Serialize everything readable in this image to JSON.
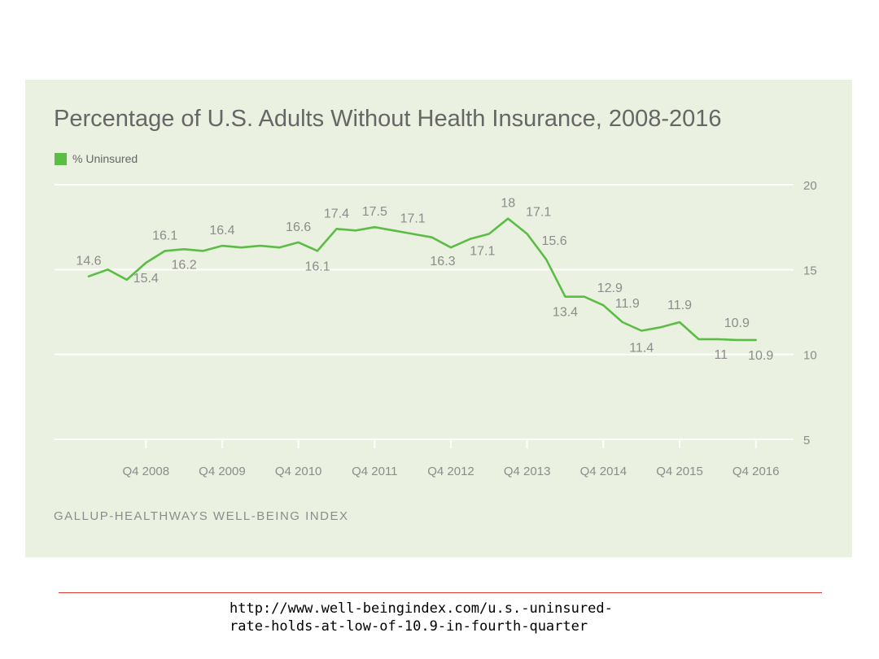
{
  "chart_data": {
    "type": "line",
    "title": "Percentage of U.S. Adults Without Health Insurance, 2008-2016",
    "legend": [
      "% Uninsured"
    ],
    "ylim": [
      5,
      20
    ],
    "yticks": [
      "20",
      "15",
      "10",
      "5"
    ],
    "xtick_labels": [
      "Q4 2008",
      "Q4 2009",
      "Q4 2010",
      "Q4 2011",
      "Q4 2012",
      "Q4 2013",
      "Q4 2014",
      "Q4 2015",
      "Q4 2016"
    ],
    "grid": true,
    "series": [
      {
        "name": "% Uninsured",
        "color": "#5cbd46",
        "values": [
          14.6,
          15.0,
          14.4,
          15.4,
          16.1,
          16.2,
          16.1,
          16.4,
          16.3,
          16.4,
          16.3,
          16.6,
          16.1,
          17.4,
          17.3,
          17.5,
          17.3,
          17.1,
          16.9,
          16.3,
          16.8,
          17.1,
          18.0,
          17.1,
          15.6,
          13.4,
          13.4,
          12.9,
          11.9,
          11.4,
          11.6,
          11.9,
          10.9,
          10.9,
          10.85,
          10.85
        ],
        "point_labels": [
          {
            "index": 0,
            "text": "14.6"
          },
          {
            "index": 3,
            "text": "15.4"
          },
          {
            "index": 4,
            "text": "16.1"
          },
          {
            "index": 5,
            "text": "16.2"
          },
          {
            "index": 7,
            "text": "16.4"
          },
          {
            "index": 11,
            "text": "16.6"
          },
          {
            "index": 12,
            "text": "16.1"
          },
          {
            "index": 13,
            "text": "17.4"
          },
          {
            "index": 15,
            "text": "17.5"
          },
          {
            "index": 17,
            "text": "17.1"
          },
          {
            "index": 19,
            "text": "16.3"
          },
          {
            "index": 21,
            "text": "17.1"
          },
          {
            "index": 22,
            "text": "18"
          },
          {
            "index": 23,
            "text": "17.1"
          },
          {
            "index": 24,
            "text": "15.6"
          },
          {
            "index": 25,
            "text": "13.4"
          },
          {
            "index": 27,
            "text": "12.9"
          },
          {
            "index": 28,
            "text": "11.9"
          },
          {
            "index": 29,
            "text": "11.4"
          },
          {
            "index": 31,
            "text": "11.9"
          },
          {
            "index": 33,
            "text": "11"
          },
          {
            "index": 34,
            "text": "10.9"
          },
          {
            "index": 35,
            "text": "10.9"
          }
        ]
      }
    ]
  },
  "source": "GALLUP-HEALTHWAYS WELL-BEING INDEX",
  "url": "http://www.well-beingindex.com/u.s.-uninsured-\nrate-holds-at-low-of-10.9-in-fourth-quarter"
}
